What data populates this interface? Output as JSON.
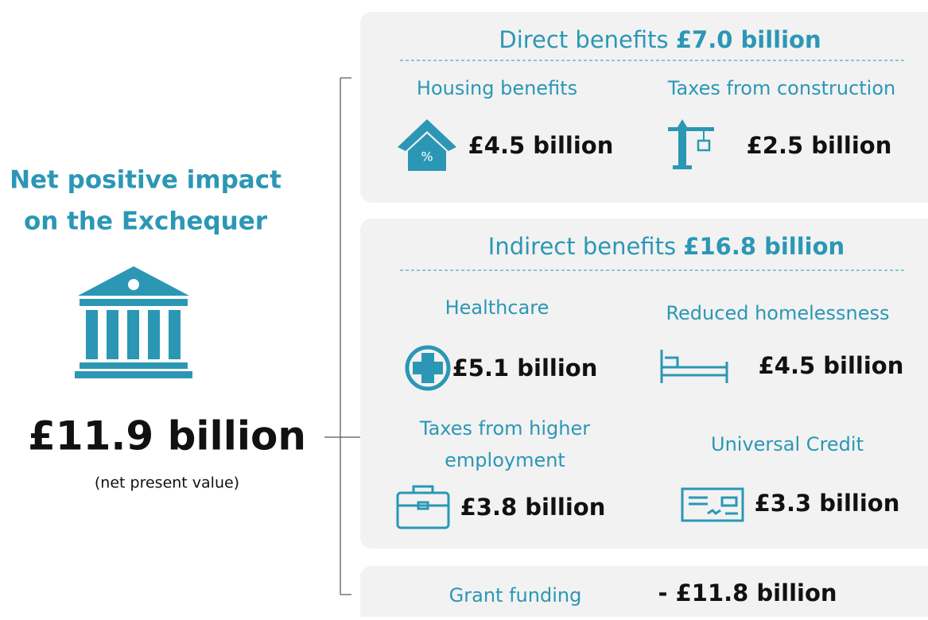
{
  "summary": {
    "title_lines": [
      "Net positive impact",
      "on the Exchequer"
    ],
    "total": "£11.9 billion",
    "note": "(net present value)"
  },
  "direct": {
    "heading": "Direct benefits",
    "amount": "£7.0 billion",
    "items": [
      {
        "label": "Housing benefits",
        "amount": "£4.5 billion"
      },
      {
        "label": "Taxes from construction",
        "amount": "£2.5 billion"
      }
    ]
  },
  "indirect": {
    "heading": "Indirect benefits",
    "amount": "£16.8 billion",
    "items": [
      {
        "label_lines": [
          "Healthcare"
        ],
        "amount": "£5.1 billion"
      },
      {
        "label_lines": [
          "Reduced homelessness"
        ],
        "amount": "£4.5 billion"
      },
      {
        "label_lines": [
          "Taxes from higher",
          "employment"
        ],
        "amount": "£3.8 billion"
      },
      {
        "label_lines": [
          "Universal Credit"
        ],
        "amount": "£3.3 billion"
      }
    ]
  },
  "grant": {
    "label": "Grant funding",
    "amount": "- £11.8 billion"
  }
}
